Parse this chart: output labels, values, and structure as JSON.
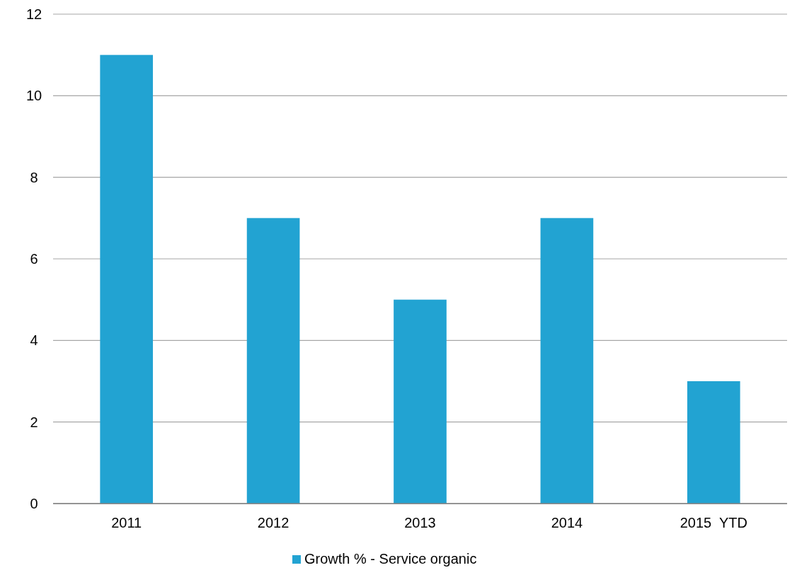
{
  "chart_data": {
    "type": "bar",
    "categories": [
      "2011",
      "2012",
      "2013",
      "2014",
      "2015  YTD"
    ],
    "series": [
      {
        "name": "Growth % - Service organic",
        "color": "#22a3d2",
        "values": [
          11,
          7,
          5,
          7,
          3
        ]
      }
    ],
    "ylim": [
      0,
      12
    ],
    "yticks": [
      0,
      2,
      4,
      6,
      8,
      10,
      12
    ],
    "grid": "y",
    "legend": "bottom"
  }
}
